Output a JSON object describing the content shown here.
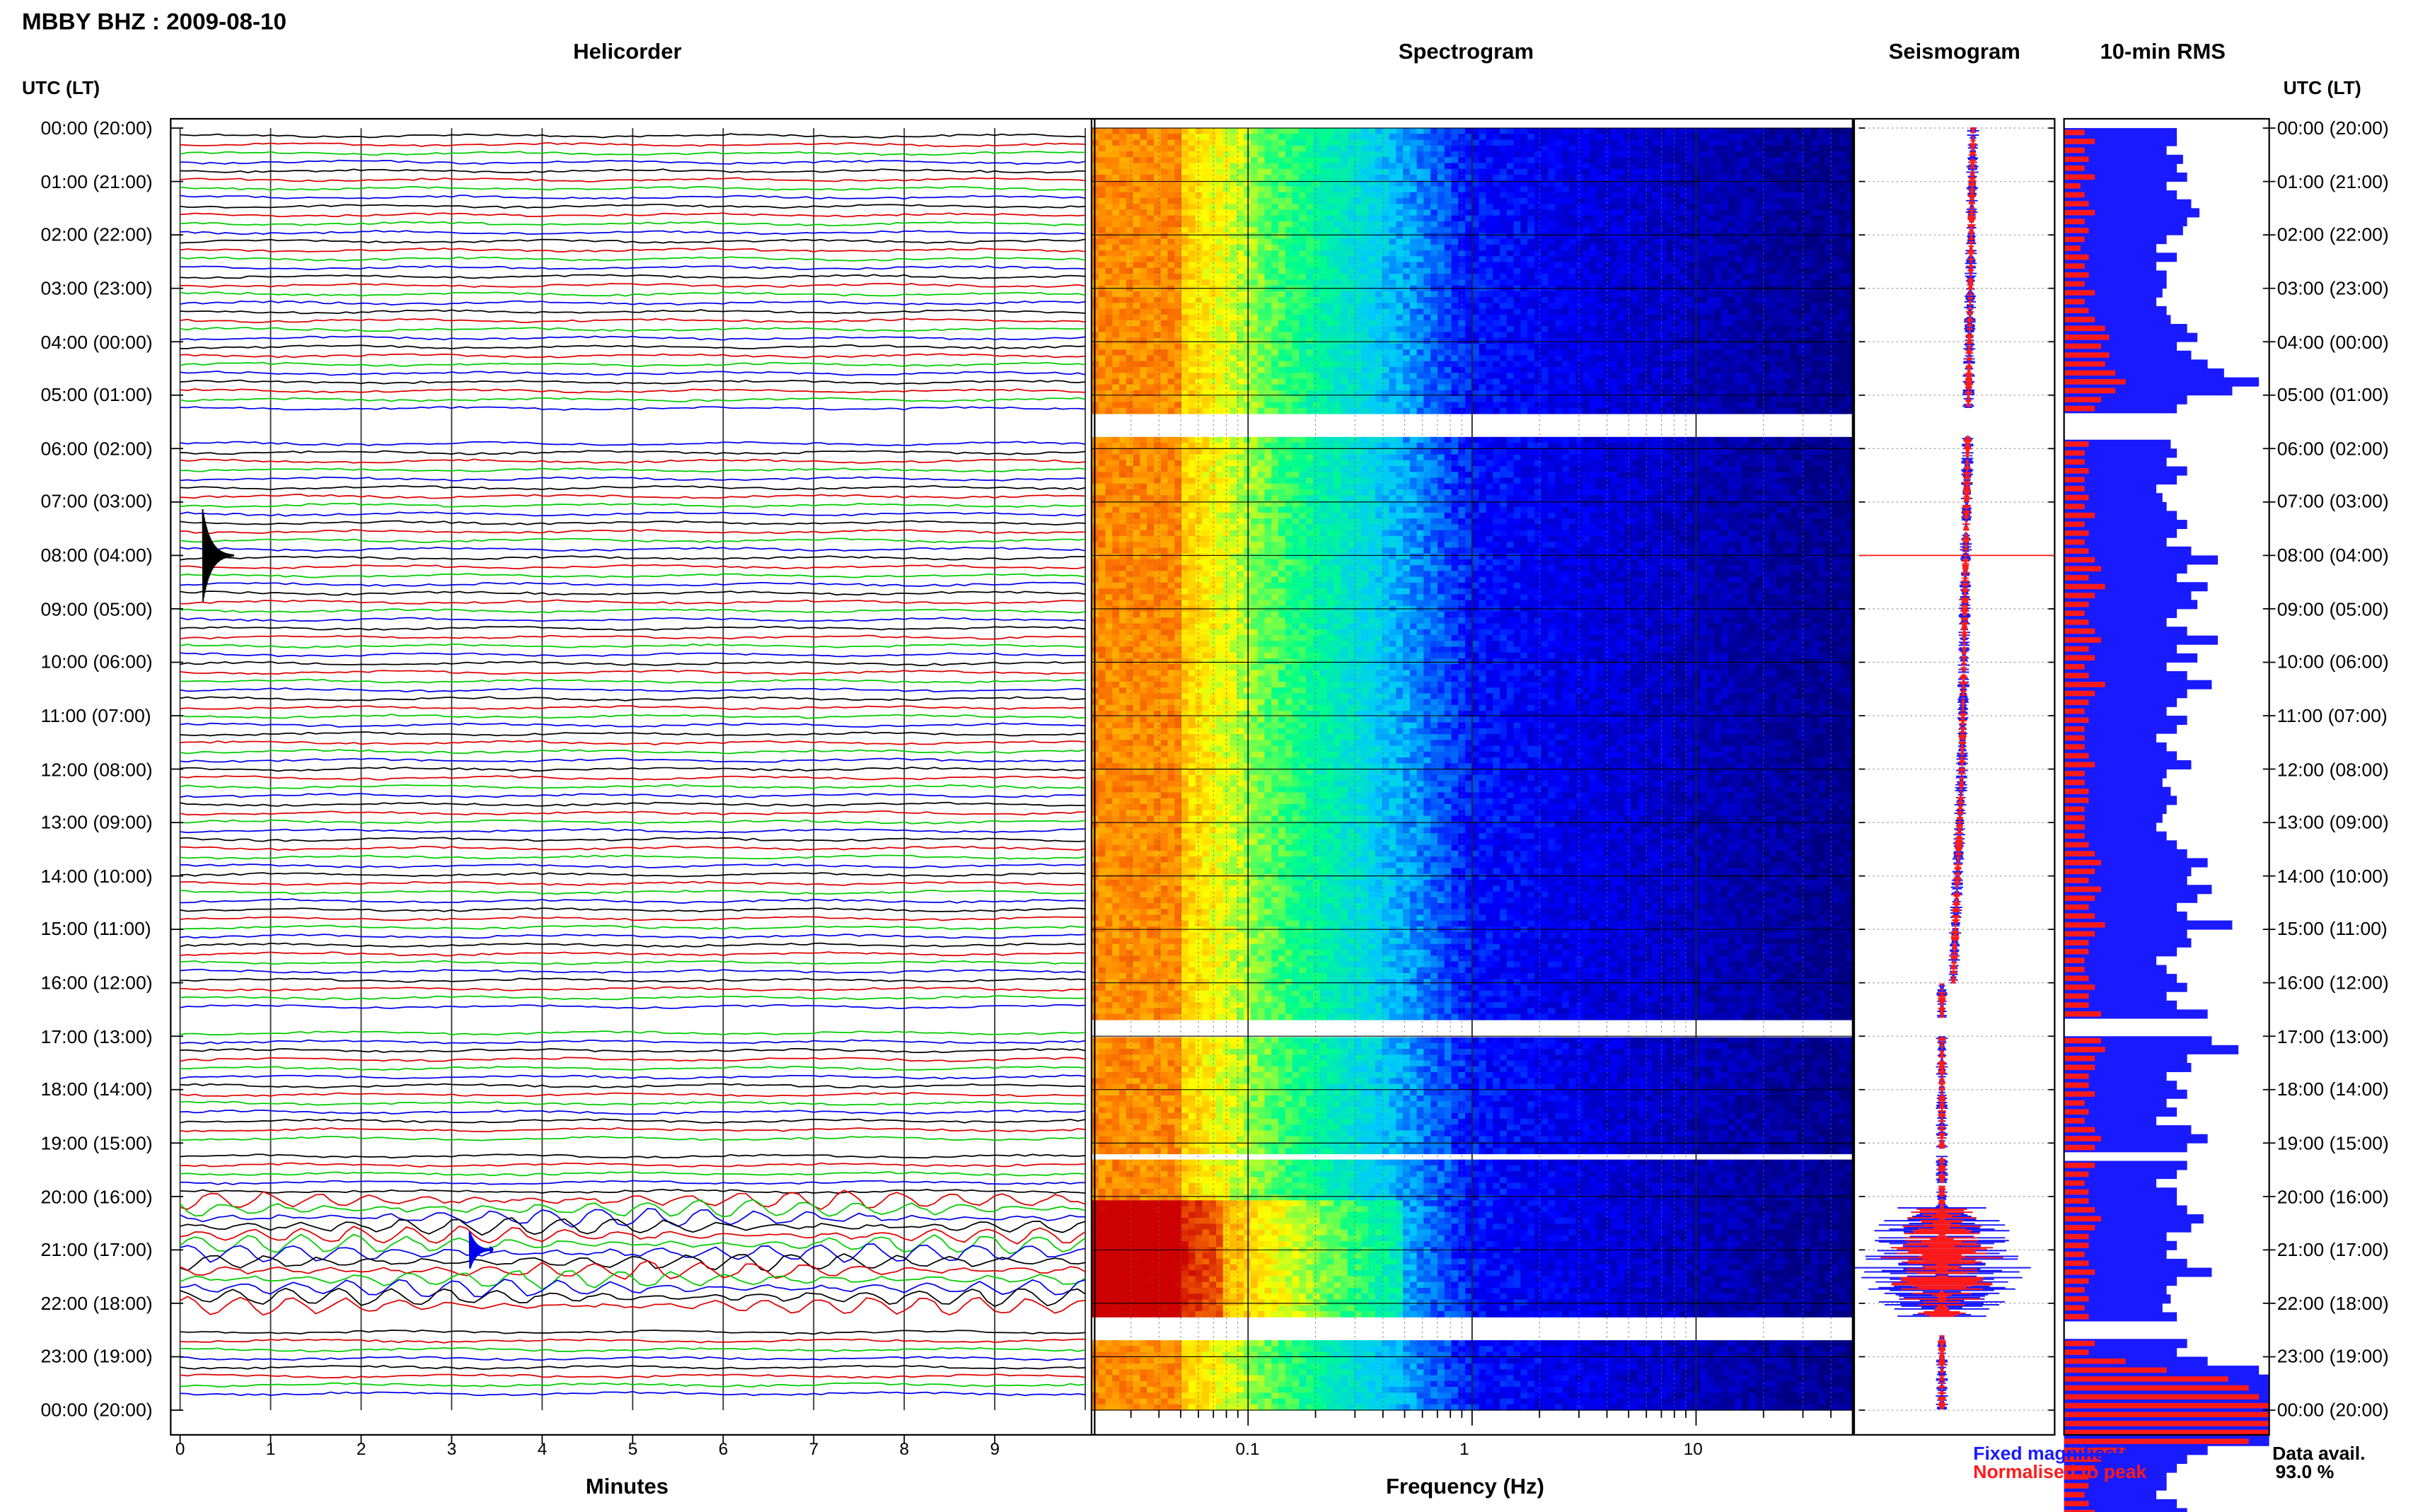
{
  "title": "MBBY BHZ : 2009-08-10",
  "panels": {
    "helicorder": "Helicorder",
    "spectrogram": "Spectrogram",
    "seismogram": "Seismogram",
    "rms": "10-min RMS"
  },
  "utc_label_left": "UTC (LT)",
  "utc_label_right": "UTC (LT)",
  "time_labels": [
    "00:00 (20:00)",
    "01:00 (21:00)",
    "02:00 (22:00)",
    "03:00 (23:00)",
    "04:00 (00:00)",
    "05:00 (01:00)",
    "06:00 (02:00)",
    "07:00 (03:00)",
    "08:00 (04:00)",
    "09:00 (05:00)",
    "10:00 (06:00)",
    "11:00 (07:00)",
    "12:00 (08:00)",
    "13:00 (09:00)",
    "14:00 (10:00)",
    "15:00 (11:00)",
    "16:00 (12:00)",
    "17:00 (13:00)",
    "18:00 (14:00)",
    "19:00 (15:00)",
    "20:00 (16:00)",
    "21:00 (17:00)",
    "22:00 (18:00)",
    "23:00 (19:00)",
    "00:00 (20:00)"
  ],
  "minutes_axis": {
    "label": "Minutes",
    "ticks": [
      "0",
      "1",
      "2",
      "3",
      "4",
      "5",
      "6",
      "7",
      "8",
      "9"
    ]
  },
  "frequency_axis": {
    "label": "Frequency (Hz)",
    "ticks": [
      "0.1",
      "1",
      "10"
    ]
  },
  "legend": {
    "fixed": "Fixed magnification",
    "normalised": "Normalised to peak",
    "fixed_color": "#1a1aff",
    "normalised_color": "#ff1a1a"
  },
  "data_avail": {
    "label": "Data avail.",
    "value": "93.0 %"
  },
  "colors": {
    "black": "#000000",
    "red": "#e00000",
    "green": "#00cc00",
    "blue": "#0000ee"
  },
  "chart_data": {
    "type": "heatmap",
    "title": "MBBY BHZ : 2009-08-10",
    "xlabel": "Frequency (Hz)",
    "x_scale": "log",
    "xlim": [
      0.02,
      50
    ],
    "ylabel": "UTC (LT)",
    "hours_utc": 24,
    "data_gaps_utc_hours": [
      [
        5.25,
        5.75
      ],
      [
        16.65,
        17.0
      ],
      [
        19.1,
        19.25
      ],
      [
        19.75,
        19.8
      ],
      [
        22.25,
        22.6
      ]
    ],
    "colormap": [
      "#000080",
      "#0000ff",
      "#00c8ff",
      "#00ff88",
      "#ffff00",
      "#ff8000",
      "#cc0000"
    ],
    "rms_fixed_series_name": "Fixed magnification",
    "rms_normalised_series_name": "Normalised to peak",
    "rms_fixed": [
      0.55,
      0.55,
      0.5,
      0.58,
      0.55,
      0.6,
      0.5,
      0.55,
      0.62,
      0.66,
      0.6,
      0.58,
      0.5,
      0.45,
      0.55,
      0.45,
      0.5,
      0.5,
      0.48,
      0.45,
      0.5,
      0.52,
      0.6,
      0.65,
      0.55,
      0.62,
      0.7,
      0.78,
      0.95,
      0.82,
      0.6,
      0.55,
      0.65,
      0.62,
      0.55,
      0.52,
      0.55,
      0.5,
      0.6,
      0.55,
      0.45,
      0.48,
      0.5,
      0.55,
      0.6,
      0.55,
      0.5,
      0.62,
      0.75,
      0.6,
      0.55,
      0.7,
      0.62,
      0.65,
      0.55,
      0.5,
      0.6,
      0.75,
      0.55,
      0.65,
      0.5,
      0.6,
      0.72,
      0.6,
      0.55,
      0.5,
      0.6,
      0.55,
      0.45,
      0.5,
      0.55,
      0.62,
      0.5,
      0.48,
      0.52,
      0.55,
      0.5,
      0.48,
      0.45,
      0.5,
      0.55,
      0.6,
      0.7,
      0.62,
      0.6,
      0.72,
      0.65,
      0.55,
      0.6,
      0.82,
      0.6,
      0.62,
      0.55,
      0.45,
      0.5,
      0.55,
      0.6,
      0.5,
      0.55,
      0.7,
      0.5,
      0.6,
      0.72,
      0.85,
      0.6,
      0.62,
      0.5,
      0.55,
      0.6,
      0.5,
      0.55,
      0.45,
      0.62,
      0.7,
      0.6,
      0.5,
      0.6,
      0.55,
      0.45,
      0.55,
      0.55,
      0.6,
      0.68,
      0.62,
      0.5,
      0.55,
      0.5,
      0.6,
      0.72,
      0.55,
      0.5,
      0.52,
      0.48,
      0.55,
      0.58,
      0.5,
      0.6,
      0.55,
      0.7,
      0.95,
      1.2,
      1.25,
      1.2,
      1.15,
      1.3,
      1.35,
      1.2,
      1.1,
      0.7,
      0.6,
      0.55,
      0.5,
      0.5,
      0.45,
      0.55,
      0.6,
      0.52,
      0.5,
      0.55,
      0.6,
      0.55,
      0.5
    ],
    "rms_normalised": [
      0.1,
      0.15,
      0.1,
      0.12,
      0.1,
      0.15,
      0.08,
      0.1,
      0.12,
      0.15,
      0.1,
      0.12,
      0.1,
      0.08,
      0.12,
      0.1,
      0.12,
      0.1,
      0.15,
      0.1,
      0.12,
      0.15,
      0.2,
      0.22,
      0.18,
      0.22,
      0.2,
      0.25,
      0.3,
      0.25,
      0.18,
      0.15,
      0.2,
      0.18,
      0.15,
      0.12,
      0.1,
      0.1,
      0.12,
      0.1,
      0.1,
      0.12,
      0.1,
      0.15,
      0.1,
      0.12,
      0.1,
      0.12,
      0.15,
      0.18,
      0.12,
      0.2,
      0.15,
      0.12,
      0.1,
      0.12,
      0.15,
      0.18,
      0.12,
      0.15,
      0.1,
      0.12,
      0.2,
      0.15,
      0.12,
      0.1,
      0.12,
      0.1,
      0.1,
      0.1,
      0.12,
      0.15,
      0.1,
      0.1,
      0.12,
      0.12,
      0.1,
      0.1,
      0.1,
      0.1,
      0.12,
      0.15,
      0.18,
      0.15,
      0.12,
      0.18,
      0.15,
      0.12,
      0.15,
      0.2,
      0.15,
      0.12,
      0.12,
      0.1,
      0.1,
      0.12,
      0.15,
      0.12,
      0.12,
      0.18,
      0.12,
      0.15,
      0.18,
      0.2,
      0.15,
      0.15,
      0.12,
      0.12,
      0.15,
      0.1,
      0.12,
      0.1,
      0.15,
      0.18,
      0.15,
      0.12,
      0.15,
      0.12,
      0.1,
      0.12,
      0.12,
      0.15,
      0.18,
      0.15,
      0.12,
      0.12,
      0.1,
      0.12,
      0.15,
      0.12,
      0.1,
      0.12,
      0.1,
      0.12,
      0.12,
      0.1,
      0.15,
      0.12,
      0.3,
      0.5,
      0.8,
      0.9,
      0.95,
      1.0,
      1.35,
      1.4,
      1.1,
      0.9,
      0.3,
      0.18,
      0.15,
      0.12,
      0.12,
      0.1,
      0.12,
      0.15,
      0.12,
      0.1,
      0.12,
      0.15,
      0.12,
      0.1
    ]
  }
}
